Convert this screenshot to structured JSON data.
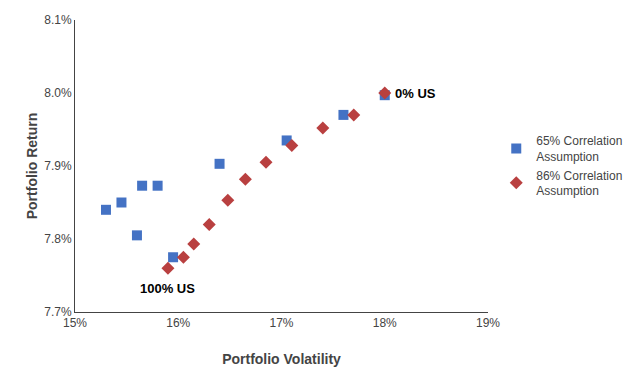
{
  "chart_data": {
    "type": "scatter",
    "xlabel": "Portfolio Volatility",
    "ylabel": "Portfolio Return",
    "xlim": [
      0.15,
      0.19
    ],
    "ylim": [
      0.077,
      0.081
    ],
    "xticks": [
      {
        "value": 0.15,
        "label": "15%"
      },
      {
        "value": 0.16,
        "label": "16%"
      },
      {
        "value": 0.17,
        "label": "17%"
      },
      {
        "value": 0.18,
        "label": "18%"
      },
      {
        "value": 0.19,
        "label": "19%"
      }
    ],
    "yticks": [
      {
        "value": 0.077,
        "label": "7.7%"
      },
      {
        "value": 0.078,
        "label": "7.8%"
      },
      {
        "value": 0.079,
        "label": "7.9%"
      },
      {
        "value": 0.08,
        "label": "8.0%"
      },
      {
        "value": 0.081,
        "label": "8.1%"
      }
    ],
    "series": [
      {
        "name": "65% Correlation\nAssumption",
        "color": "#4472C4",
        "marker": "square",
        "x": [
          0.153,
          0.1545,
          0.1565,
          0.158,
          0.156,
          0.1595,
          0.164,
          0.1705,
          0.176,
          0.18
        ],
        "values": [
          0.0784,
          0.0785,
          0.07873,
          0.07873,
          0.07805,
          0.07775,
          0.07903,
          0.07935,
          0.0797,
          0.07997
        ]
      },
      {
        "name": "86% Correlation\nAssumption",
        "color": "#B94040",
        "marker": "diamond",
        "x": [
          0.159,
          0.1605,
          0.1615,
          0.163,
          0.1648,
          0.1665,
          0.1685,
          0.171,
          0.174,
          0.177,
          0.18
        ],
        "values": [
          0.0776,
          0.07775,
          0.07793,
          0.0782,
          0.07853,
          0.07882,
          0.07905,
          0.07928,
          0.07952,
          0.0797,
          0.08
        ]
      }
    ],
    "annotations": [
      {
        "text": "100% US",
        "x": 0.159,
        "y": 0.07745
      },
      {
        "text": "0% US",
        "x": 0.1808,
        "y": 0.08
      }
    ],
    "grid": false,
    "legend": "right"
  }
}
